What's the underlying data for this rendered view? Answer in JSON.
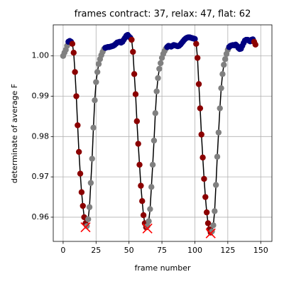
{
  "chart_data": {
    "type": "line",
    "title": "frames contract: 37, relax: 47, flat: 62",
    "xlabel": "frame number",
    "ylabel": "determinate of average F",
    "xlim": [
      -7.5,
      158.5
    ],
    "ylim": [
      0.954,
      1.0077
    ],
    "xticks": [
      0,
      25,
      50,
      75,
      100,
      125,
      150
    ],
    "yticks": [
      0.96,
      0.97,
      0.98,
      0.99,
      {
        "value": 1,
        "label": "1.00"
      }
    ],
    "grid": true,
    "series": [
      {
        "color": "black",
        "x": [
          0,
          1,
          2,
          3,
          4,
          5,
          6,
          7,
          8,
          9,
          10,
          11,
          12,
          13,
          14,
          15,
          16,
          17,
          18,
          19,
          20,
          21,
          22,
          23,
          24,
          25,
          26,
          27,
          28,
          29,
          30,
          31,
          32,
          33,
          34,
          35,
          36,
          37,
          38,
          39,
          40,
          41,
          42,
          43,
          44,
          45,
          46,
          47,
          48,
          49,
          50,
          51,
          52,
          53,
          54,
          55,
          56,
          57,
          58,
          59,
          60,
          61,
          62,
          63,
          64,
          65,
          66,
          67,
          68,
          69,
          70,
          71,
          72,
          73,
          74,
          75,
          76,
          77,
          78,
          79,
          80,
          81,
          82,
          83,
          84,
          85,
          86,
          87,
          88,
          89,
          90,
          91,
          92,
          93,
          94,
          95,
          96,
          97,
          98,
          99,
          100,
          101,
          102,
          103,
          104,
          105,
          106,
          107,
          108,
          109,
          110,
          111,
          112,
          113,
          114,
          115,
          116,
          117,
          118,
          119,
          120,
          121,
          122,
          123,
          124,
          125,
          126,
          127,
          128,
          129,
          130,
          131,
          132,
          133,
          134,
          135,
          136,
          137,
          138,
          139,
          140,
          141,
          142,
          143,
          144,
          145,
          146
        ],
        "values": [
          1.0,
          1.0008,
          1.0015,
          1.0025,
          1.0035,
          1.0037,
          1.0035,
          1.003,
          1.0008,
          0.996,
          0.99,
          0.9828,
          0.9762,
          0.9708,
          0.9662,
          0.9628,
          0.96,
          0.9585,
          0.9578,
          0.9595,
          0.9625,
          0.9685,
          0.9745,
          0.9822,
          0.989,
          0.9935,
          0.996,
          0.998,
          0.9992,
          1.0002,
          1.001,
          1.0017,
          1.002,
          1.0021,
          1.0022,
          1.0022,
          1.0023,
          1.0024,
          1.0025,
          1.0027,
          1.003,
          1.0033,
          1.0034,
          1.0035,
          1.0033,
          1.0035,
          1.004,
          1.0045,
          1.005,
          1.0052,
          1.0048,
          1.0045,
          1.004,
          1.001,
          0.9955,
          0.9905,
          0.9838,
          0.9782,
          0.973,
          0.9678,
          0.964,
          0.9605,
          0.9585,
          0.9575,
          0.9578,
          0.959,
          0.962,
          0.9675,
          0.973,
          0.979,
          0.9858,
          0.9912,
          0.9945,
          0.9968,
          0.9982,
          0.9995,
          1.0005,
          1.0012,
          1.0018,
          1.0022,
          1.0025,
          1.0024,
          1.0023,
          1.0025,
          1.0027,
          1.0026,
          1.0025,
          1.0024,
          1.0025,
          1.0028,
          1.0032,
          1.0036,
          1.004,
          1.0043,
          1.0045,
          1.0046,
          1.0046,
          1.0045,
          1.0044,
          1.0043,
          1.0042,
          1.003,
          0.9995,
          0.993,
          0.987,
          0.9805,
          0.9748,
          0.9695,
          0.965,
          0.9612,
          0.9585,
          0.957,
          0.9562,
          0.9565,
          0.958,
          0.9615,
          0.968,
          0.975,
          0.981,
          0.987,
          0.992,
          0.9955,
          0.9978,
          0.9992,
          1.0005,
          1.0015,
          1.0022,
          1.0025,
          1.0026,
          1.0027,
          1.0026,
          1.0028,
          1.0025,
          1.002,
          1.0017,
          1.0018,
          1.0025,
          1.0032,
          1.0038,
          1.004,
          1.004,
          1.0038,
          1.0036,
          1.004,
          1.0041,
          1.0035,
          1.0028
        ],
        "point_colors": [
          "gray",
          "gray",
          "gray",
          "gray",
          "navy",
          "navy",
          "navy",
          "darkred",
          "darkred",
          "darkred",
          "darkred",
          "darkred",
          "darkred",
          "darkred",
          "darkred",
          "darkred",
          "darkred",
          "darkred",
          "gray",
          "gray",
          "gray",
          "gray",
          "gray",
          "gray",
          "gray",
          "gray",
          "gray",
          "gray",
          "gray",
          "gray",
          "gray",
          "gray",
          "navy",
          "navy",
          "navy",
          "navy",
          "navy",
          "navy",
          "navy",
          "navy",
          "navy",
          "navy",
          "navy",
          "navy",
          "navy",
          "navy",
          "navy",
          "navy",
          "navy",
          "navy",
          "navy",
          "navy",
          "darkred",
          "darkred",
          "darkred",
          "darkred",
          "darkred",
          "darkred",
          "darkred",
          "darkred",
          "darkred",
          "darkred",
          "darkred",
          "darkred",
          "gray",
          "gray",
          "gray",
          "gray",
          "gray",
          "gray",
          "gray",
          "gray",
          "gray",
          "gray",
          "gray",
          "gray",
          "gray",
          "gray",
          "gray",
          "navy",
          "navy",
          "navy",
          "navy",
          "navy",
          "navy",
          "navy",
          "navy",
          "navy",
          "navy",
          "navy",
          "navy",
          "navy",
          "navy",
          "navy",
          "navy",
          "navy",
          "navy",
          "navy",
          "navy",
          "navy",
          "navy",
          "darkred",
          "darkred",
          "darkred",
          "darkred",
          "darkred",
          "darkred",
          "darkred",
          "darkred",
          "darkred",
          "darkred",
          "darkred",
          "darkred",
          "gray",
          "gray",
          "gray",
          "gray",
          "gray",
          "gray",
          "gray",
          "gray",
          "gray",
          "gray",
          "gray",
          "gray",
          "gray",
          "navy",
          "navy",
          "navy",
          "navy",
          "navy",
          "navy",
          "navy",
          "navy",
          "navy",
          "navy",
          "navy",
          "navy",
          "navy",
          "navy",
          "navy",
          "navy",
          "navy",
          "navy",
          "navy",
          "darkred",
          "darkred"
        ]
      }
    ],
    "markers": {
      "color": "red",
      "x": [
        17,
        64,
        112
      ],
      "values": [
        0.9575,
        0.9572,
        0.956
      ]
    }
  }
}
